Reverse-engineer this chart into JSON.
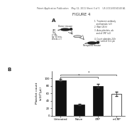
{
  "figure_title": "FIGURE 4",
  "header_text": "Patent Application Publication    May 12, 2011 Sheet 3 of 5    US 2011/0034140 A1",
  "panel_a_label": "A",
  "panel_b_label": "B",
  "bar_categories": [
    "Untreated",
    "Naive",
    "CRP",
    "mCRP"
  ],
  "bar_values": [
    95,
    30,
    80,
    58
  ],
  "bar_colors": [
    "#111111",
    "#111111",
    "#111111",
    "#ffffff"
  ],
  "bar_edge_colors": [
    "#111111",
    "#111111",
    "#111111",
    "#111111"
  ],
  "bar_error": [
    3,
    2,
    4,
    5
  ],
  "ylabel": "Platelet count\n(x10³/μL)",
  "ylabel_fontsize": 3.2,
  "ylim": [
    0,
    120
  ],
  "yticks": [
    0,
    20,
    40,
    60,
    80,
    100
  ],
  "bar_width": 0.55,
  "background_color": "#ffffff",
  "title_fontsize": 4.0,
  "header_fontsize": 2.2,
  "tick_fontsize": 2.8,
  "cat_fontsize": 2.8
}
